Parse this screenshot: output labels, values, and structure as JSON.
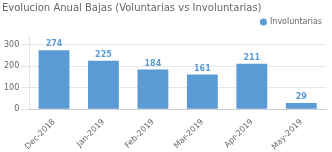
{
  "chart_data": {
    "type": "bar",
    "title": "Evolucion Anual Bajas (Voluntarias vs Involuntarias)",
    "categories": [
      "Dec-2018",
      "Jan-2019",
      "Feb-2019",
      "Mar-2019",
      "Apr-2019",
      "May-2019"
    ],
    "series": [
      {
        "name": "Involuntarias",
        "color": "#5b9bd5",
        "values": [
          274,
          225,
          184,
          161,
          211,
          29
        ]
      }
    ],
    "ylim": [
      0,
      340
    ],
    "yticks": [
      0,
      100,
      200,
      300
    ],
    "grid": true,
    "legend": "upper right",
    "data_labels": true
  }
}
